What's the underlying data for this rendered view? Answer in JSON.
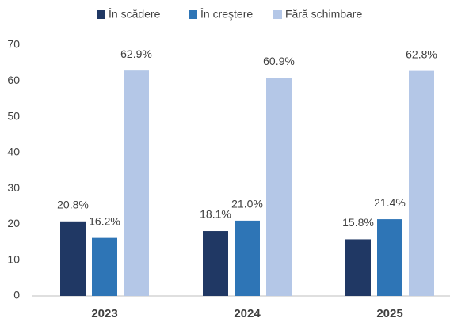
{
  "chart_data": {
    "type": "bar",
    "categories": [
      "2023",
      "2024",
      "2025"
    ],
    "series": [
      {
        "name": "În scădere",
        "color": "#203864",
        "values": [
          20.8,
          18.1,
          15.8
        ],
        "value_labels": [
          "20.8%",
          "18.1%",
          "15.8%"
        ]
      },
      {
        "name": "În creştere",
        "color": "#2e75b6",
        "values": [
          16.2,
          21.0,
          21.4
        ],
        "value_labels": [
          "16.2%",
          "21.0%",
          "21.4%"
        ]
      },
      {
        "name": "Fără schimbare",
        "color": "#b4c7e7",
        "values": [
          62.9,
          60.9,
          62.8
        ],
        "value_labels": [
          "62.9%",
          "60.9%",
          "62.8%"
        ]
      }
    ],
    "ylim": [
      0,
      70
    ],
    "yticks": [
      0,
      10,
      20,
      30,
      40,
      50,
      60,
      70
    ],
    "grid": false,
    "legend": "top"
  }
}
